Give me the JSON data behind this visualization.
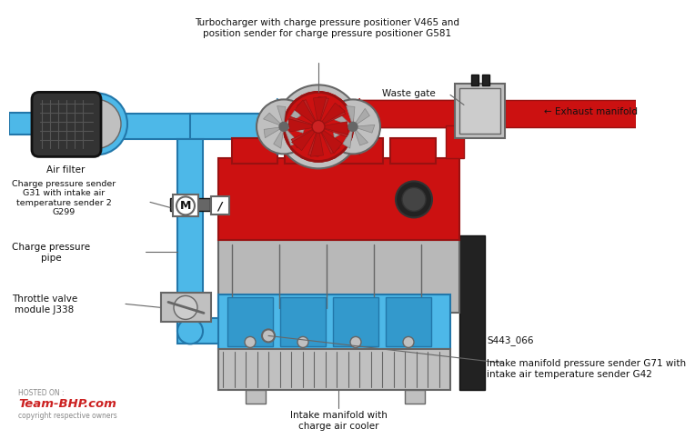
{
  "background_color": "#ffffff",
  "colors": {
    "blue": "#4db8e8",
    "dark_blue": "#2277aa",
    "red": "#cc1111",
    "dark_red": "#991111",
    "gray": "#aaaaaa",
    "dark_gray": "#666666",
    "mid_gray": "#999999",
    "light_gray": "#cccccc",
    "silver": "#c0c0c0",
    "dark": "#444444",
    "black": "#111111",
    "white": "#ffffff",
    "engine_silver": "#b8b8b8",
    "exhaust_red": "#dd1111",
    "charcoal": "#333333",
    "dark_charcoal": "#222222"
  },
  "labels": {
    "turbocharger": "Turbocharger with charge pressure positioner V465 and\nposition sender for charge pressure positioner G581",
    "air_filter": "Air filter",
    "charge_pressure_sender": "Charge pressure sender\nG31 with intake air\ntemperature sender 2\nG299",
    "charge_pressure_pipe": "Charge pressure\npipe",
    "throttle_valve": "Throttle valve\nmodule J338",
    "waste_gate": "Waste gate",
    "exhaust_manifold": "← Exhaust manifold",
    "intake_manifold_pressure": "Intake manifold pressure sender G71 with\nintake air temperature sender G42",
    "s443": "S443_066",
    "intake_manifold": "Intake manifold with\ncharge air cooler"
  },
  "watermark": {
    "hosted": "HOSTED ON :",
    "brand": "Team-BHP.com",
    "copyright": "copyright respective owners"
  }
}
